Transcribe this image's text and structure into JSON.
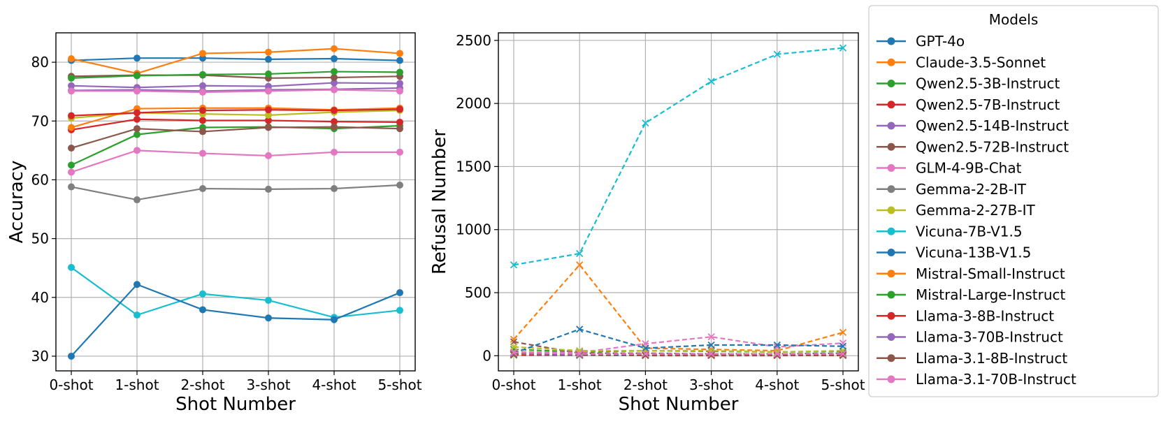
{
  "chart_data": [
    {
      "type": "line",
      "title": "",
      "xlabel": "Shot Number",
      "ylabel": "Accuracy",
      "categories": [
        "0-shot",
        "1-shot",
        "2-shot",
        "3-shot",
        "4-shot",
        "5-shot"
      ],
      "ylim": [
        27.5,
        85
      ],
      "yticks": [
        30,
        40,
        50,
        60,
        70,
        80
      ],
      "grid": true,
      "marker": "circle",
      "linestyle": "solid",
      "series": [
        {
          "name": "GPT-4o",
          "color": "#1f77b4",
          "values": [
            80.3,
            80.7,
            80.7,
            80.5,
            80.6,
            80.3
          ]
        },
        {
          "name": "Claude-3.5-Sonnet",
          "color": "#ff7f0e",
          "values": [
            80.6,
            78.1,
            81.5,
            81.7,
            82.3,
            81.5
          ]
        },
        {
          "name": "Qwen2.5-3B-Instruct",
          "color": "#2ca02c",
          "values": [
            62.5,
            67.7,
            68.9,
            69.0,
            68.7,
            69.2
          ]
        },
        {
          "name": "Qwen2.5-7B-Instruct",
          "color": "#d62728",
          "values": [
            68.5,
            70.3,
            70.1,
            70.1,
            69.9,
            69.8
          ]
        },
        {
          "name": "Qwen2.5-14B-Instruct",
          "color": "#9467bd",
          "values": [
            76.0,
            75.7,
            76.0,
            75.9,
            76.5,
            76.4
          ]
        },
        {
          "name": "Qwen2.5-72B-Instruct",
          "color": "#8c564b",
          "values": [
            77.6,
            77.8,
            77.8,
            77.3,
            77.4,
            77.6
          ]
        },
        {
          "name": "GLM-4-9B-Chat",
          "color": "#e377c2",
          "values": [
            61.3,
            65.0,
            64.5,
            64.1,
            64.7,
            64.7
          ]
        },
        {
          "name": "Gemma-2-2B-IT",
          "color": "#7f7f7f",
          "values": [
            58.8,
            56.6,
            58.5,
            58.4,
            58.5,
            59.1
          ]
        },
        {
          "name": "Gemma-2-27B-IT",
          "color": "#bcbd22",
          "values": [
            70.5,
            71.4,
            71.2,
            71.0,
            71.5,
            71.8
          ]
        },
        {
          "name": "Vicuna-7B-V1.5",
          "color": "#17becf",
          "values": [
            45.1,
            37.0,
            40.6,
            39.5,
            36.6,
            37.8
          ]
        },
        {
          "name": "Vicuna-13B-V1.5",
          "color": "#1f77b4",
          "values": [
            30.0,
            42.2,
            37.9,
            36.5,
            36.2,
            40.8
          ]
        },
        {
          "name": "Mistral-Small-Instruct",
          "color": "#ff7f0e",
          "values": [
            68.9,
            72.1,
            72.2,
            72.2,
            71.9,
            72.2
          ]
        },
        {
          "name": "Mistral-Large-Instruct",
          "color": "#2ca02c",
          "values": [
            77.3,
            77.7,
            77.9,
            78.0,
            78.4,
            78.3
          ]
        },
        {
          "name": "Llama-3-8B-Instruct",
          "color": "#d62728",
          "values": [
            70.9,
            71.4,
            71.8,
            71.9,
            71.8,
            72.0
          ]
        },
        {
          "name": "Llama-3-70B-Instruct",
          "color": "#9467bd",
          "values": [
            75.2,
            75.3,
            75.1,
            75.3,
            75.4,
            75.6
          ]
        },
        {
          "name": "Llama-3.1-8B-Instruct",
          "color": "#8c564b",
          "values": [
            65.4,
            68.7,
            68.2,
            68.9,
            69.0,
            68.7
          ]
        },
        {
          "name": "Llama-3.1-70B-Instruct",
          "color": "#e377c2",
          "values": [
            75.1,
            75.1,
            74.9,
            75.1,
            75.3,
            75.1
          ]
        }
      ]
    },
    {
      "type": "line",
      "title": "",
      "xlabel": "Shot Number",
      "ylabel": "Refusal Number",
      "categories": [
        "0-shot",
        "1-shot",
        "2-shot",
        "3-shot",
        "4-shot",
        "5-shot"
      ],
      "ylim": [
        -120,
        2560
      ],
      "yticks": [
        0,
        500,
        1000,
        1500,
        2000,
        2500
      ],
      "grid": true,
      "marker": "x",
      "linestyle": "dashed",
      "series": [
        {
          "name": "GPT-4o",
          "color": "#1f77b4",
          "values": [
            5,
            3,
            2,
            2,
            2,
            3
          ]
        },
        {
          "name": "Claude-3.5-Sonnet",
          "color": "#ff7f0e",
          "values": [
            130,
            720,
            60,
            50,
            40,
            185
          ]
        },
        {
          "name": "Qwen2.5-3B-Instruct",
          "color": "#2ca02c",
          "values": [
            50,
            30,
            40,
            35,
            30,
            35
          ]
        },
        {
          "name": "Qwen2.5-7B-Instruct",
          "color": "#d62728",
          "values": [
            5,
            3,
            2,
            2,
            2,
            2
          ]
        },
        {
          "name": "Qwen2.5-14B-Instruct",
          "color": "#9467bd",
          "values": [
            20,
            10,
            10,
            10,
            10,
            10
          ]
        },
        {
          "name": "Qwen2.5-72B-Instruct",
          "color": "#8c564b",
          "values": [
            110,
            20,
            20,
            15,
            15,
            20
          ]
        },
        {
          "name": "GLM-4-9B-Chat",
          "color": "#e377c2",
          "values": [
            30,
            25,
            95,
            150,
            70,
            100
          ]
        },
        {
          "name": "Gemma-2-2B-IT",
          "color": "#7f7f7f",
          "values": [
            10,
            5,
            5,
            5,
            5,
            5
          ]
        },
        {
          "name": "Gemma-2-27B-IT",
          "color": "#bcbd22",
          "values": [
            70,
            40,
            40,
            40,
            30,
            40
          ]
        },
        {
          "name": "Vicuna-7B-V1.5",
          "color": "#17becf",
          "values": [
            720,
            810,
            1845,
            2175,
            2390,
            2440
          ]
        },
        {
          "name": "Vicuna-13B-V1.5",
          "color": "#1f77b4",
          "values": [
            20,
            210,
            60,
            85,
            85,
            75
          ]
        },
        {
          "name": "Mistral-Small-Instruct",
          "color": "#ff7f0e",
          "values": [
            5,
            3,
            5,
            5,
            5,
            5
          ]
        },
        {
          "name": "Mistral-Large-Instruct",
          "color": "#2ca02c",
          "values": [
            5,
            3,
            3,
            3,
            3,
            3
          ]
        },
        {
          "name": "Llama-3-8B-Instruct",
          "color": "#d62728",
          "values": [
            10,
            5,
            5,
            5,
            5,
            5
          ]
        },
        {
          "name": "Llama-3-70B-Instruct",
          "color": "#9467bd",
          "values": [
            15,
            5,
            10,
            10,
            10,
            10
          ]
        },
        {
          "name": "Llama-3.1-8B-Instruct",
          "color": "#8c564b",
          "values": [
            20,
            10,
            10,
            10,
            10,
            10
          ]
        },
        {
          "name": "Llama-3.1-70B-Instruct",
          "color": "#e377c2",
          "values": [
            25,
            15,
            15,
            15,
            15,
            15
          ]
        }
      ]
    }
  ],
  "legend": {
    "title": "Models",
    "placement": "right",
    "entries": [
      {
        "name": "GPT-4o",
        "color": "#1f77b4"
      },
      {
        "name": "Claude-3.5-Sonnet",
        "color": "#ff7f0e"
      },
      {
        "name": "Qwen2.5-3B-Instruct",
        "color": "#2ca02c"
      },
      {
        "name": "Qwen2.5-7B-Instruct",
        "color": "#d62728"
      },
      {
        "name": "Qwen2.5-14B-Instruct",
        "color": "#9467bd"
      },
      {
        "name": "Qwen2.5-72B-Instruct",
        "color": "#8c564b"
      },
      {
        "name": "GLM-4-9B-Chat",
        "color": "#e377c2"
      },
      {
        "name": "Gemma-2-2B-IT",
        "color": "#7f7f7f"
      },
      {
        "name": "Gemma-2-27B-IT",
        "color": "#bcbd22"
      },
      {
        "name": "Vicuna-7B-V1.5",
        "color": "#17becf"
      },
      {
        "name": "Vicuna-13B-V1.5",
        "color": "#1f77b4"
      },
      {
        "name": "Mistral-Small-Instruct",
        "color": "#ff7f0e"
      },
      {
        "name": "Mistral-Large-Instruct",
        "color": "#2ca02c"
      },
      {
        "name": "Llama-3-8B-Instruct",
        "color": "#d62728"
      },
      {
        "name": "Llama-3-70B-Instruct",
        "color": "#9467bd"
      },
      {
        "name": "Llama-3.1-8B-Instruct",
        "color": "#8c564b"
      },
      {
        "name": "Llama-3.1-70B-Instruct",
        "color": "#e377c2"
      }
    ]
  }
}
